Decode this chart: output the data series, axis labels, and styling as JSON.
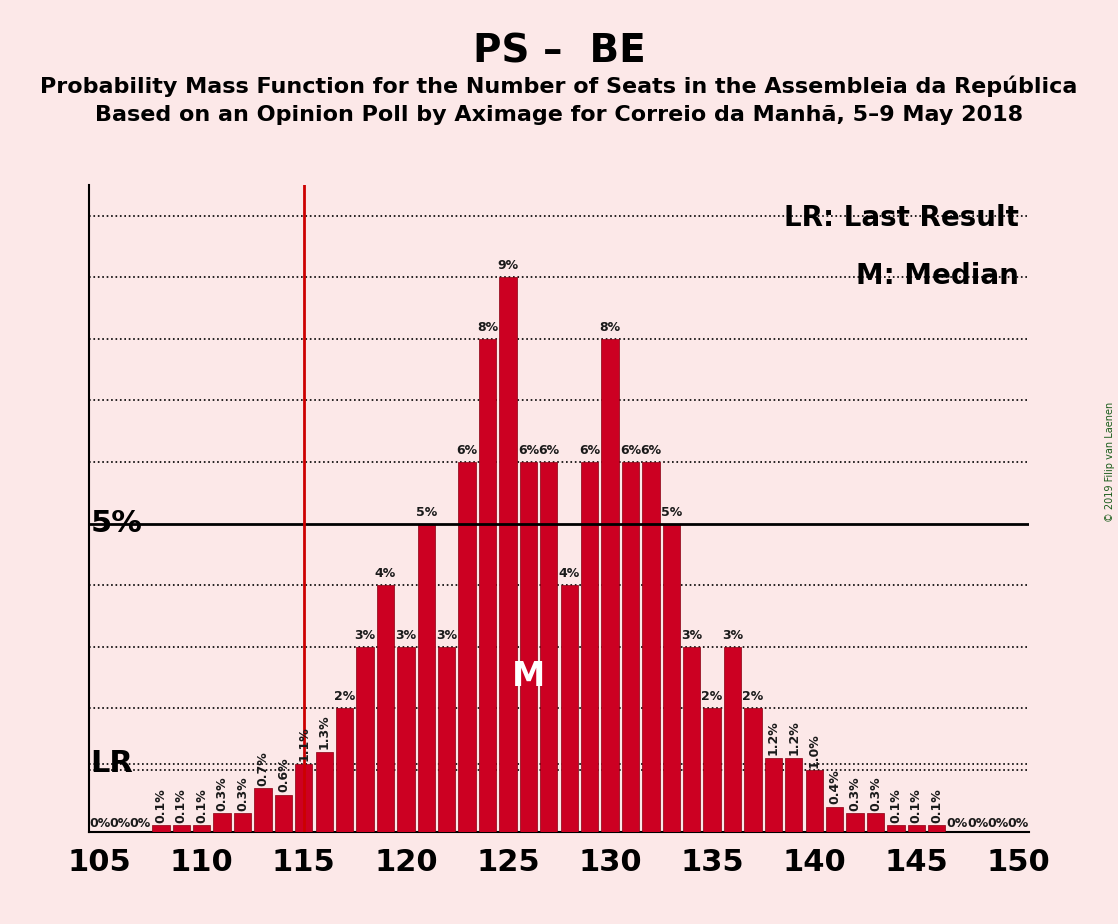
{
  "title": "PS –  BE",
  "subtitle1": "Probability Mass Function for the Number of Seats in the Assembleia da República",
  "subtitle2": "Based on an Opinion Poll by Aximage for Correio da Manhã, 5–9 May 2018",
  "watermark": "© 2019 Filip van Laenen",
  "background_color": "#fce8e8",
  "bar_color": "#cc0022",
  "lr_line_color": "#cc0000",
  "lr_value": 115,
  "median_value": 126,
  "xlim": [
    104.5,
    150.5
  ],
  "ylim": [
    0,
    10.5
  ],
  "xlabel_ticks": [
    105,
    110,
    115,
    120,
    125,
    130,
    135,
    140,
    145,
    150
  ],
  "seats": [
    105,
    106,
    107,
    108,
    109,
    110,
    111,
    112,
    113,
    114,
    115,
    116,
    117,
    118,
    119,
    120,
    121,
    122,
    123,
    124,
    125,
    126,
    127,
    128,
    129,
    130,
    131,
    132,
    133,
    134,
    135,
    136,
    137,
    138,
    139,
    140,
    141,
    142,
    143,
    144,
    145,
    146,
    147,
    148,
    149,
    150
  ],
  "probs": [
    0.0,
    0.0,
    0.0,
    0.1,
    0.1,
    0.1,
    0.3,
    0.3,
    0.7,
    0.6,
    1.1,
    1.3,
    2.0,
    3.0,
    4.0,
    3.0,
    5.0,
    3.0,
    6.0,
    8.0,
    9.0,
    6.0,
    6.0,
    4.0,
    6.0,
    8.0,
    6.0,
    6.0,
    5.0,
    3.0,
    2.0,
    3.0,
    2.0,
    1.2,
    1.2,
    1.0,
    0.4,
    0.3,
    0.3,
    0.1,
    0.1,
    0.1,
    0.0,
    0.0,
    0.0,
    0.0
  ],
  "prob_labels": [
    "0%",
    "0%",
    "0%",
    "0.1%",
    "0.1%",
    "0.1%",
    "0.3%",
    "0.3%",
    "0.7%",
    "0.6%",
    "1.1%",
    "1.3%",
    "2%",
    "3%",
    "4%",
    "3%",
    "5%",
    "3%",
    "6%",
    "8%",
    "9%",
    "6%",
    "6%",
    "4%",
    "6%",
    "8%",
    "6%",
    "6%",
    "5%",
    "3%",
    "2%",
    "3%",
    "2%",
    "1.2%",
    "1.2%",
    "1.0%",
    "0.4%",
    "0.3%",
    "0.3%",
    "0.1%",
    "0.1%",
    "0.1%",
    "0%",
    "0%",
    "0%",
    "0%"
  ],
  "dotted_levels": [
    1,
    2,
    3,
    4,
    6,
    7,
    8,
    9,
    10
  ],
  "lr_dotted_level": 1.1,
  "solid_level": 5,
  "lr_label": "LR",
  "median_label": "M",
  "legend_lr": "LR: Last Result",
  "legend_m": "M: Median",
  "title_fontsize": 28,
  "subtitle_fontsize": 16,
  "tick_fontsize": 22,
  "label_fontsize": 9,
  "legend_fontsize": 20,
  "annot_5pct_fontsize": 22,
  "lr_fontsize": 22,
  "median_fontsize": 24
}
